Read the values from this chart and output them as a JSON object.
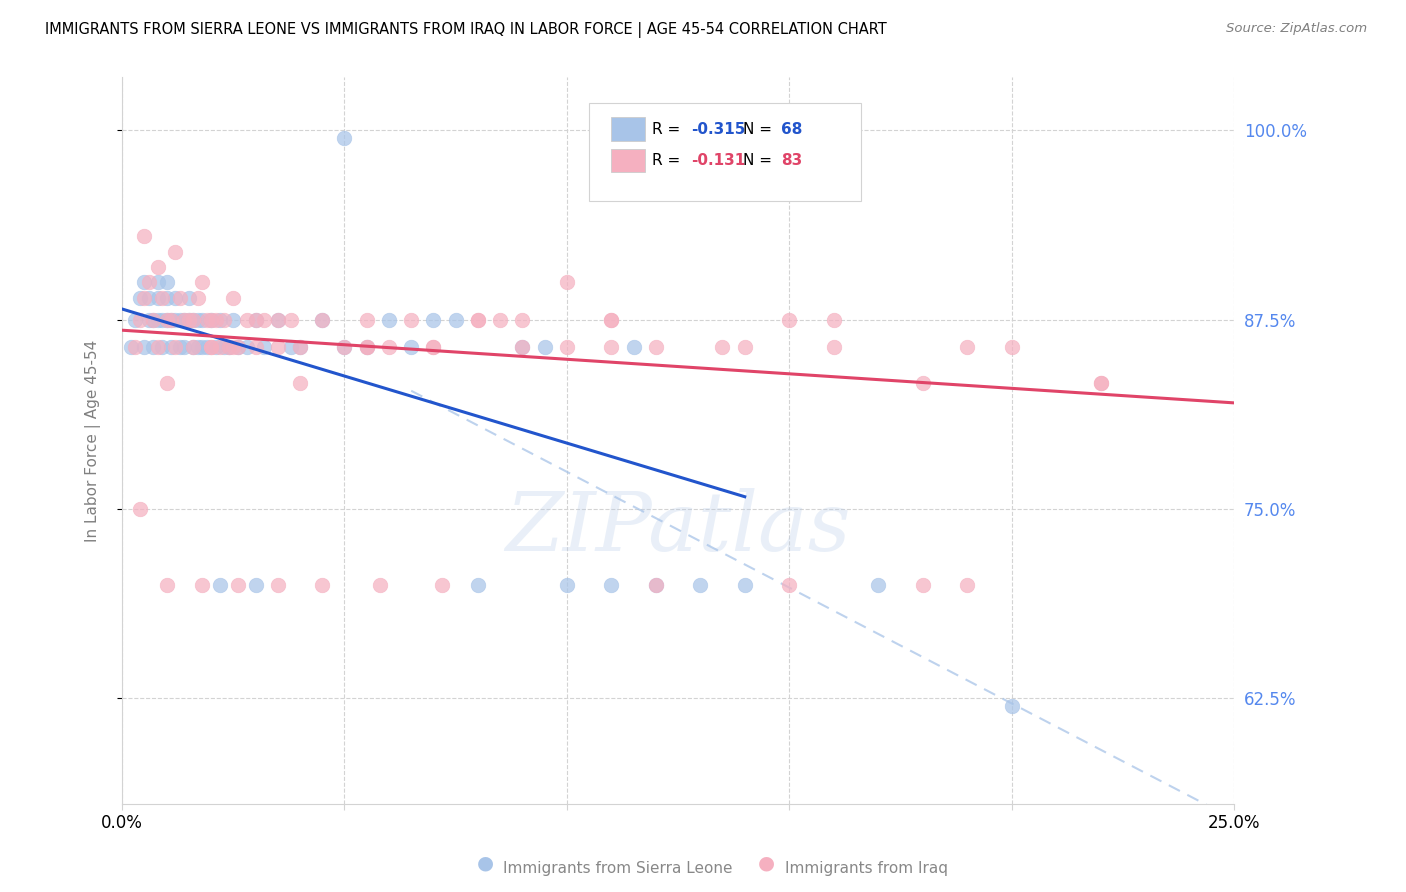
{
  "title": "IMMIGRANTS FROM SIERRA LEONE VS IMMIGRANTS FROM IRAQ IN LABOR FORCE | AGE 45-54 CORRELATION CHART",
  "source": "Source: ZipAtlas.com",
  "ylabel": "In Labor Force | Age 45-54",
  "xlim": [
    0.0,
    0.25
  ],
  "ylim": [
    0.555,
    1.035
  ],
  "legend_blue_r": "-0.315",
  "legend_blue_n": "68",
  "legend_pink_r": "-0.131",
  "legend_pink_n": "83",
  "blue_scatter_color": "#a8c4e8",
  "pink_scatter_color": "#f5b0c0",
  "blue_line_color": "#2255cc",
  "pink_line_color": "#e04468",
  "right_axis_color": "#5588ee",
  "yticks_right": [
    0.625,
    0.75,
    0.875,
    1.0
  ],
  "ytick_labels_right": [
    "62.5%",
    "75.0%",
    "87.5%",
    "100.0%"
  ],
  "watermark": "ZIPatlas",
  "blue_reg": [
    0.0,
    0.14,
    0.882,
    0.758
  ],
  "pink_reg": [
    0.0,
    0.25,
    0.868,
    0.82
  ],
  "blue_dashed": [
    0.065,
    0.25,
    0.828,
    0.545
  ],
  "blue_x": [
    0.002,
    0.003,
    0.004,
    0.005,
    0.005,
    0.006,
    0.006,
    0.007,
    0.007,
    0.008,
    0.008,
    0.008,
    0.009,
    0.009,
    0.01,
    0.01,
    0.01,
    0.011,
    0.011,
    0.012,
    0.012,
    0.013,
    0.013,
    0.014,
    0.014,
    0.015,
    0.015,
    0.016,
    0.016,
    0.017,
    0.017,
    0.018,
    0.018,
    0.019,
    0.02,
    0.021,
    0.022,
    0.023,
    0.024,
    0.025,
    0.026,
    0.028,
    0.03,
    0.032,
    0.035,
    0.038,
    0.04,
    0.045,
    0.05,
    0.055,
    0.06,
    0.065,
    0.07,
    0.08,
    0.09,
    0.1,
    0.11,
    0.12,
    0.13,
    0.05,
    0.075,
    0.095,
    0.115,
    0.14,
    0.17,
    0.2,
    0.022,
    0.03
  ],
  "blue_y": [
    0.857,
    0.875,
    0.889,
    0.9,
    0.857,
    0.889,
    0.875,
    0.875,
    0.857,
    0.9,
    0.889,
    0.875,
    0.875,
    0.857,
    0.9,
    0.889,
    0.875,
    0.875,
    0.857,
    0.889,
    0.875,
    0.875,
    0.857,
    0.875,
    0.857,
    0.889,
    0.875,
    0.875,
    0.857,
    0.875,
    0.857,
    0.875,
    0.857,
    0.857,
    0.875,
    0.857,
    0.875,
    0.857,
    0.857,
    0.875,
    0.857,
    0.857,
    0.875,
    0.857,
    0.875,
    0.857,
    0.857,
    0.875,
    0.857,
    0.857,
    0.875,
    0.857,
    0.875,
    0.7,
    0.857,
    0.7,
    0.7,
    0.7,
    0.7,
    0.995,
    0.875,
    0.857,
    0.857,
    0.7,
    0.7,
    0.62,
    0.7,
    0.7
  ],
  "pink_x": [
    0.003,
    0.004,
    0.005,
    0.006,
    0.007,
    0.008,
    0.009,
    0.01,
    0.011,
    0.012,
    0.013,
    0.014,
    0.015,
    0.016,
    0.017,
    0.018,
    0.019,
    0.02,
    0.021,
    0.022,
    0.023,
    0.024,
    0.025,
    0.026,
    0.028,
    0.03,
    0.032,
    0.035,
    0.038,
    0.04,
    0.045,
    0.05,
    0.055,
    0.06,
    0.065,
    0.07,
    0.08,
    0.09,
    0.1,
    0.11,
    0.12,
    0.14,
    0.16,
    0.18,
    0.2,
    0.22,
    0.005,
    0.008,
    0.012,
    0.016,
    0.02,
    0.025,
    0.03,
    0.04,
    0.055,
    0.07,
    0.085,
    0.1,
    0.12,
    0.15,
    0.18,
    0.004,
    0.01,
    0.018,
    0.026,
    0.035,
    0.045,
    0.058,
    0.072,
    0.09,
    0.11,
    0.135,
    0.16,
    0.19,
    0.01,
    0.02,
    0.035,
    0.055,
    0.08,
    0.11,
    0.15,
    0.19,
    0.22
  ],
  "pink_y": [
    0.857,
    0.875,
    0.889,
    0.9,
    0.875,
    0.857,
    0.889,
    0.875,
    0.875,
    0.857,
    0.889,
    0.875,
    0.875,
    0.857,
    0.889,
    0.9,
    0.875,
    0.857,
    0.875,
    0.857,
    0.875,
    0.857,
    0.889,
    0.857,
    0.875,
    0.857,
    0.875,
    0.857,
    0.875,
    0.857,
    0.875,
    0.857,
    0.875,
    0.857,
    0.875,
    0.857,
    0.875,
    0.875,
    0.9,
    0.875,
    0.857,
    0.857,
    0.857,
    0.833,
    0.857,
    0.833,
    0.93,
    0.91,
    0.92,
    0.875,
    0.875,
    0.857,
    0.875,
    0.833,
    0.857,
    0.857,
    0.875,
    0.857,
    0.7,
    0.7,
    0.7,
    0.75,
    0.7,
    0.7,
    0.7,
    0.7,
    0.7,
    0.7,
    0.7,
    0.857,
    0.875,
    0.857,
    0.875,
    0.7,
    0.833,
    0.857,
    0.875,
    0.857,
    0.875,
    0.857,
    0.875,
    0.857,
    0.833
  ]
}
